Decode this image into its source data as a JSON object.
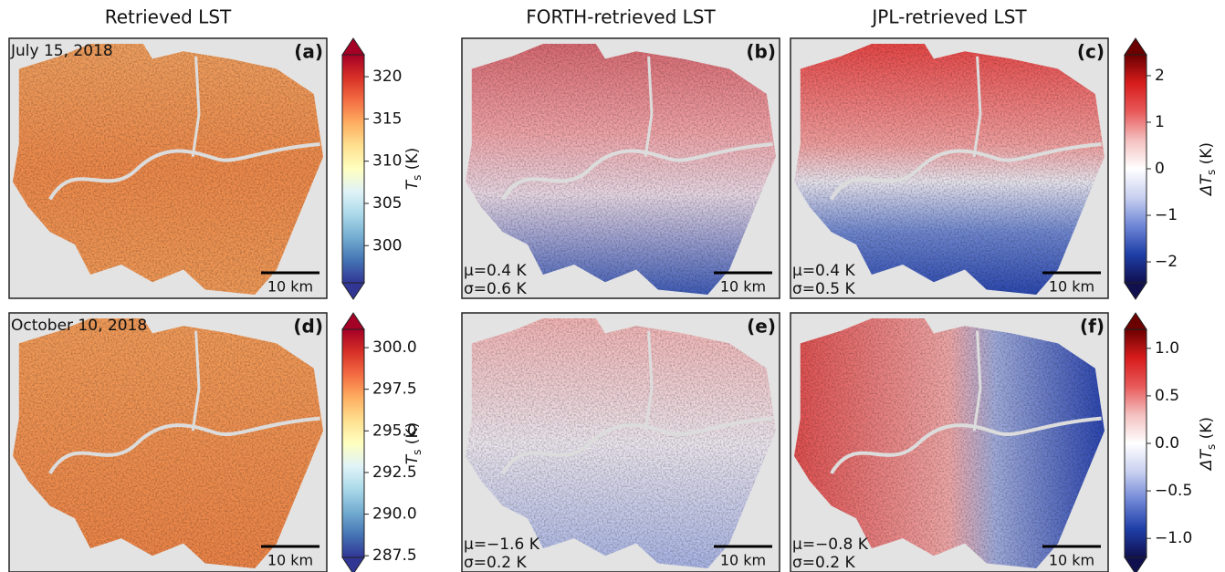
{
  "column_titles": [
    "Retrieved LST",
    "FORTH-retrieved LST",
    "JPL-retrieved LST"
  ],
  "rows": [
    {
      "date": "July 15, 2018",
      "panels": [
        {
          "letter": "(a)",
          "scale_bar": "10 km"
        },
        {
          "letter": "(b)",
          "mu": "μ=0.4 K",
          "sigma": "σ=0.6 K",
          "scale_bar": "10 km"
        },
        {
          "letter": "(c)",
          "mu": "μ=0.4 K",
          "sigma": "σ=0.5 K",
          "scale_bar": "10 km"
        }
      ],
      "colorbars": [
        {
          "label": {
            "symbol": "T",
            "subscript": "s",
            "unit": " (K)"
          },
          "ylim": [
            295.6,
            322.6
          ],
          "ticks": [
            300,
            305,
            310,
            315,
            320
          ],
          "colors": [
            "#313695",
            "#4575b4",
            "#74add1",
            "#abd9e9",
            "#e0f3f8",
            "#ffffbf",
            "#fee090",
            "#fdae61",
            "#f46d43",
            "#d73027",
            "#a50026"
          ]
        },
        {
          "label": {
            "symbol": "ΔT",
            "subscript": "s",
            "unit": " (K)"
          },
          "ylim": [
            -2.45,
            2.45
          ],
          "ticks": [
            {
              "value": -2,
              "label": "−2"
            },
            {
              "value": -1,
              "label": "−1"
            },
            0,
            1,
            2
          ],
          "colors": [
            "#10104f",
            "#1f3fa8",
            "#6f86d6",
            "#c9d0f0",
            "#ffffff",
            "#f4c0c0",
            "#e85a5a",
            "#d81c1c",
            "#6b0000"
          ]
        }
      ]
    },
    {
      "date": "October 10, 2018",
      "panels": [
        {
          "letter": "(d)",
          "scale_bar": "10 km"
        },
        {
          "letter": "(e)",
          "mu": "μ=−1.6 K",
          "sigma": "σ=0.2 K",
          "scale_bar": "10 km"
        },
        {
          "letter": "(f)",
          "mu": "μ=−0.8 K",
          "sigma": "σ=0.2 K",
          "scale_bar": "10 km"
        }
      ],
      "colorbars": [
        {
          "label": {
            "symbol": "T",
            "subscript": "s",
            "unit": " (K)"
          },
          "ylim": [
            287.4,
            301.1
          ],
          "ticks": [
            287.5,
            {
              "value": 290,
              "label": "290.0"
            },
            292.5,
            {
              "value": 295,
              "label": "295.0"
            },
            297.5,
            {
              "value": 300,
              "label": "300.0"
            }
          ],
          "colors": [
            "#313695",
            "#4575b4",
            "#74add1",
            "#abd9e9",
            "#e0f3f8",
            "#ffffbf",
            "#fee090",
            "#fdae61",
            "#f46d43",
            "#d73027",
            "#a50026"
          ]
        },
        {
          "label": {
            "symbol": "ΔT",
            "subscript": "s",
            "unit": " (K)"
          },
          "ylim": [
            -1.2,
            1.2
          ],
          "ticks": [
            {
              "value": -1,
              "label": "−1.0"
            },
            {
              "value": -0.5,
              "label": "−0.5"
            },
            {
              "value": 0,
              "label": "0.0"
            },
            0.5,
            {
              "value": 1,
              "label": "1.0"
            }
          ],
          "colors": [
            "#10104f",
            "#1f3fa8",
            "#6f86d6",
            "#c9d0f0",
            "#ffffff",
            "#f4c0c0",
            "#e85a5a",
            "#d81c1c",
            "#6b0000"
          ]
        }
      ]
    }
  ]
}
